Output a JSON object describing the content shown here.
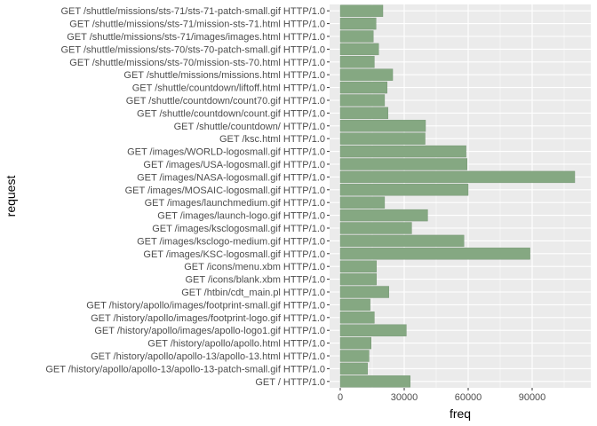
{
  "chart_data": {
    "type": "bar",
    "orientation": "horizontal",
    "xlabel": "freq",
    "ylabel": "request",
    "xlim": [
      0,
      112000
    ],
    "x_ticks": [
      0,
      30000,
      60000,
      90000
    ],
    "x_tick_labels": [
      "0",
      "30000",
      "60000",
      "90000"
    ],
    "grid": true,
    "colors": {
      "panel_bg": "#ebebeb",
      "grid_major": "#ffffff",
      "bar_fill": "#85a882",
      "bar_stroke": "#6d8f6b"
    },
    "categories": [
      "GET /shuttle/missions/sts-71/sts-71-patch-small.gif HTTP/1.0",
      "GET /shuttle/missions/sts-71/mission-sts-71.html HTTP/1.0",
      "GET /shuttle/missions/sts-71/images/images.html HTTP/1.0",
      "GET /shuttle/missions/sts-70/sts-70-patch-small.gif HTTP/1.0",
      "GET /shuttle/missions/sts-70/mission-sts-70.html HTTP/1.0",
      "GET /shuttle/missions/missions.html HTTP/1.0",
      "GET /shuttle/countdown/liftoff.html HTTP/1.0",
      "GET /shuttle/countdown/count70.gif HTTP/1.0",
      "GET /shuttle/countdown/count.gif HTTP/1.0",
      "GET /shuttle/countdown/ HTTP/1.0",
      "GET /ksc.html HTTP/1.0",
      "GET /images/WORLD-logosmall.gif HTTP/1.0",
      "GET /images/USA-logosmall.gif HTTP/1.0",
      "GET /images/NASA-logosmall.gif HTTP/1.0",
      "GET /images/MOSAIC-logosmall.gif HTTP/1.0",
      "GET /images/launchmedium.gif HTTP/1.0",
      "GET /images/launch-logo.gif HTTP/1.0",
      "GET /images/ksclogosmall.gif HTTP/1.0",
      "GET /images/ksclogo-medium.gif HTTP/1.0",
      "GET /images/KSC-logosmall.gif HTTP/1.0",
      "GET /icons/menu.xbm HTTP/1.0",
      "GET /icons/blank.xbm HTTP/1.0",
      "GET /htbin/cdt_main.pl HTTP/1.0",
      "GET /history/apollo/images/footprint-small.gif HTTP/1.0",
      "GET /history/apollo/images/footprint-logo.gif HTTP/1.0",
      "GET /history/apollo/images/apollo-logo1.gif HTTP/1.0",
      "GET /history/apollo/apollo.html HTTP/1.0",
      "GET /history/apollo/apollo-13/apollo-13.html HTTP/1.0",
      "GET /history/apollo/apollo-13/apollo-13-patch-small.gif HTTP/1.0",
      "GET / HTTP/1.0"
    ],
    "values": [
      20000,
      16800,
      15500,
      18000,
      16000,
      24600,
      22000,
      20800,
      22400,
      40000,
      39800,
      59000,
      59500,
      110000,
      60000,
      20800,
      41000,
      33500,
      58000,
      89000,
      17000,
      17000,
      22800,
      14000,
      16000,
      31000,
      14500,
      13500,
      12800,
      32800
    ]
  }
}
